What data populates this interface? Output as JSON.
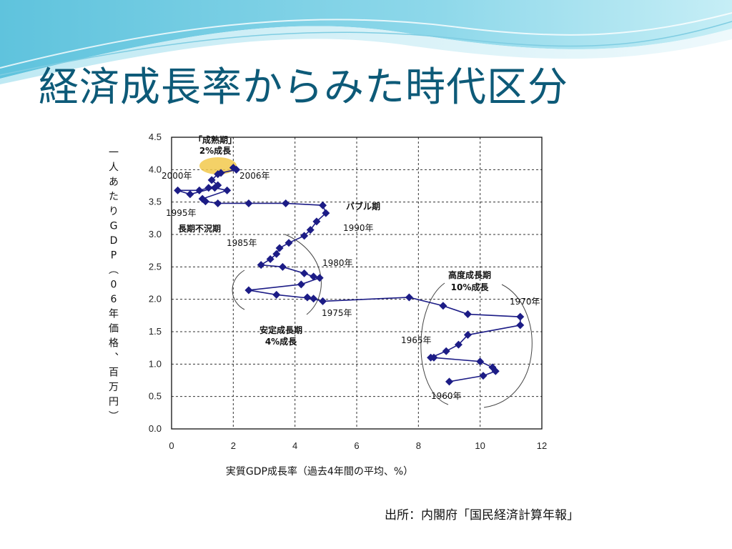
{
  "title": "経済成長率からみた時代区分",
  "source": "出所：内閣府「国民経済計算年報」",
  "colors": {
    "title": "#0d5a78",
    "series": "#1c1c86",
    "highlight": "#f2c94c"
  },
  "chart_data": {
    "type": "scatter",
    "xlabel": "実質GDP成長率（過去4年間の平均、%）",
    "ylabel": "一人あたりGDP（06年価格、百万円）",
    "xlim": [
      0,
      12
    ],
    "ylim": [
      0,
      4.5
    ],
    "xticks": [
      "0",
      "2",
      "4",
      "6",
      "8",
      "10",
      "12"
    ],
    "yticks": [
      "0.0",
      "0.5",
      "1.0",
      "1.5",
      "2.0",
      "2.5",
      "3.0",
      "3.5",
      "4.0",
      "4.5"
    ],
    "grid": true,
    "series": [
      {
        "points": [
          [
            9.0,
            0.73
          ],
          [
            10.1,
            0.82
          ],
          [
            10.5,
            0.89
          ],
          [
            10.4,
            0.95
          ],
          [
            10.0,
            1.04
          ],
          [
            8.5,
            1.1
          ],
          [
            8.4,
            1.1
          ],
          [
            8.9,
            1.2
          ],
          [
            9.3,
            1.3
          ],
          [
            9.6,
            1.45
          ],
          [
            11.3,
            1.6
          ],
          [
            11.3,
            1.73
          ],
          [
            9.6,
            1.77
          ],
          [
            8.8,
            1.9
          ],
          [
            7.7,
            2.03
          ],
          [
            4.9,
            1.97
          ],
          [
            4.4,
            2.03
          ],
          [
            4.6,
            2.01
          ],
          [
            3.4,
            2.07
          ],
          [
            2.5,
            2.14
          ],
          [
            4.2,
            2.23
          ],
          [
            4.8,
            2.33
          ],
          [
            4.6,
            2.35
          ],
          [
            4.3,
            2.4
          ],
          [
            3.6,
            2.5
          ],
          [
            2.9,
            2.53
          ],
          [
            3.2,
            2.62
          ],
          [
            3.4,
            2.7
          ],
          [
            3.5,
            2.79
          ],
          [
            3.8,
            2.87
          ],
          [
            4.3,
            2.98
          ],
          [
            4.5,
            3.07
          ],
          [
            4.7,
            3.2
          ],
          [
            5.0,
            3.33
          ],
          [
            4.9,
            3.45
          ],
          [
            3.7,
            3.48
          ],
          [
            2.5,
            3.48
          ],
          [
            1.5,
            3.48
          ],
          [
            1.1,
            3.51
          ],
          [
            1.0,
            3.55
          ],
          [
            1.8,
            3.68
          ],
          [
            1.4,
            3.72
          ],
          [
            0.6,
            3.62
          ],
          [
            0.2,
            3.68
          ],
          [
            0.9,
            3.68
          ],
          [
            1.2,
            3.72
          ],
          [
            1.5,
            3.76
          ],
          [
            1.3,
            3.84
          ],
          [
            1.5,
            3.93
          ],
          [
            1.6,
            3.95
          ],
          [
            2.1,
            4.0
          ],
          [
            2.0,
            4.03
          ]
        ]
      }
    ],
    "labels": {
      "y1960": "1960年",
      "y1965": "1965年",
      "y1970": "1970年",
      "y1975": "1975年",
      "y1980": "1980年",
      "y1985": "1985年",
      "y1990": "1990年",
      "y1995": "1995年",
      "y2000": "2000年",
      "y2006": "2006年"
    },
    "annotations": {
      "mature_line1": "「成熟期」",
      "mature_line2": "2%成長",
      "high_line1": "高度成長期",
      "high_line2": "10%成長",
      "stable_line1": "安定成長期",
      "stable_line2": "4%成長",
      "bubble": "バブル期",
      "stagnation": "長期不況期"
    }
  }
}
